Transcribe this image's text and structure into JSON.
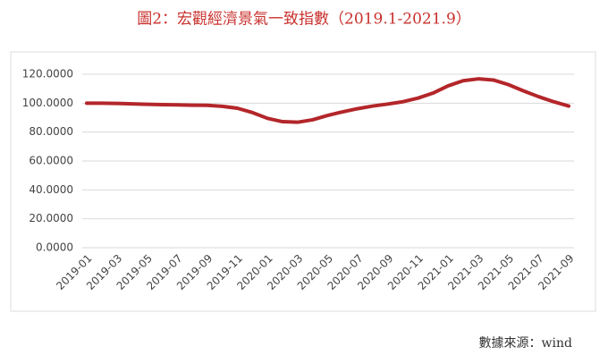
{
  "chart_data": {
    "type": "line",
    "title": "圖2：宏觀經濟景氣一致指數（2019.1-2021.9）",
    "source": "數據來源：wind",
    "categories": [
      "2019-01",
      null,
      "2019-03",
      null,
      "2019-05",
      null,
      "2019-07",
      null,
      "2019-09",
      null,
      "2019-11",
      null,
      "2020-01",
      null,
      "2020-03",
      null,
      "2020-05",
      null,
      "2020-07",
      null,
      "2020-09",
      null,
      "2020-11",
      null,
      "2021-01",
      null,
      "2021-03",
      null,
      "2021-05",
      null,
      "2021-07",
      null,
      "2021-09"
    ],
    "series": [
      {
        "name": "宏觀經濟景氣一致指數",
        "color": "#b3262a",
        "values": [
          100,
          100,
          99.8,
          99.5,
          99.2,
          99,
          98.8,
          98.6,
          98.5,
          97.8,
          96.5,
          93.5,
          89.5,
          87.2,
          86.8,
          88.5,
          91.5,
          94,
          96.2,
          98,
          99.4,
          101,
          103.5,
          107,
          112,
          115.5,
          116.8,
          116,
          112.8,
          108.5,
          104.5,
          101,
          98
        ]
      }
    ],
    "ylim": [
      0,
      120
    ],
    "yticks": [
      {
        "value": 0,
        "label": "0.0000"
      },
      {
        "value": 20,
        "label": "20.0000"
      },
      {
        "value": 40,
        "label": "40.0000"
      },
      {
        "value": 60,
        "label": "60.0000"
      },
      {
        "value": 80,
        "label": "80.0000"
      },
      {
        "value": 100,
        "label": "100.0000"
      },
      {
        "value": 120,
        "label": "120.0000"
      }
    ],
    "grid": true
  }
}
